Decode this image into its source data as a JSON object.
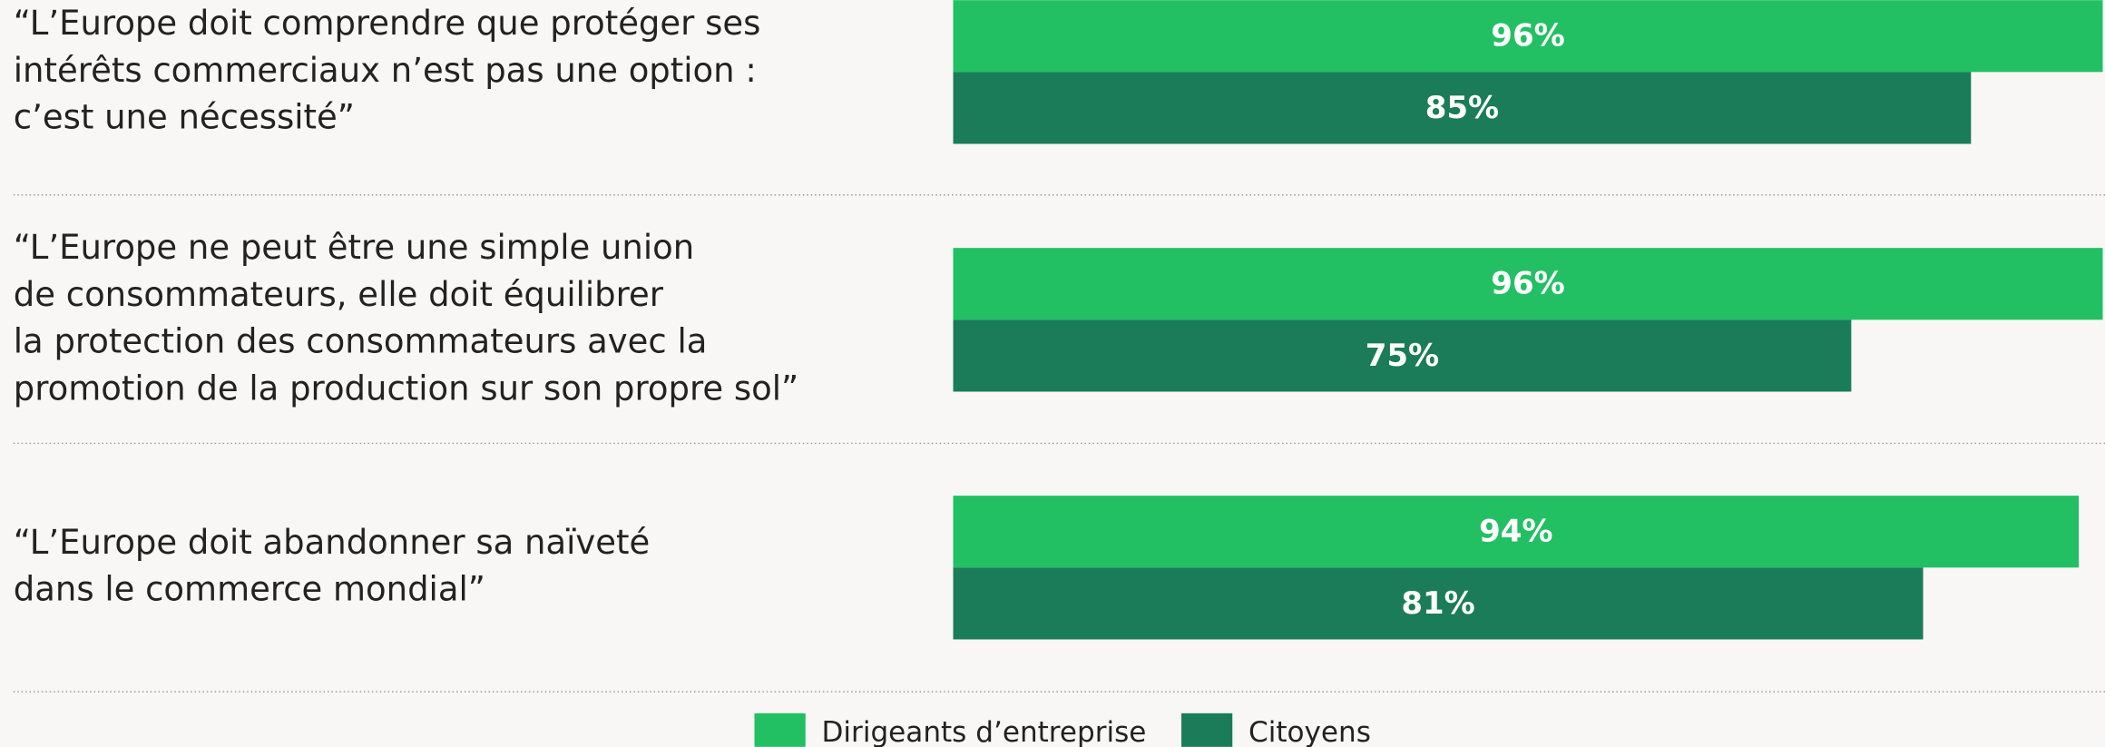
{
  "chart_data": {
    "type": "bar",
    "orientation": "horizontal",
    "categories": [
      [
        "“L’Europe doit comprendre que protéger ses",
        "intérêts commerciaux n’est pas une option :",
        "c’est une nécessité”"
      ],
      [
        "“L’Europe ne peut être une simple union",
        "de consommateurs, elle doit équilibrer",
        "la protection des consommateurs avec la",
        "promotion de la production sur son propre sol”"
      ],
      [
        "“L’Europe doit abandonner sa naïveté",
        "dans le commerce mondial”"
      ]
    ],
    "series": [
      {
        "name": "Dirigeants d’entreprise",
        "color": "#22c063",
        "values": [
          96,
          96,
          94
        ],
        "value_labels": [
          "96%",
          "96%",
          "94%"
        ]
      },
      {
        "name": "Citoyens",
        "color": "#1a7c58",
        "values": [
          85,
          75,
          81
        ],
        "value_labels": [
          "85%",
          "75%",
          "81%"
        ]
      }
    ],
    "xlim": [
      0,
      100
    ]
  }
}
